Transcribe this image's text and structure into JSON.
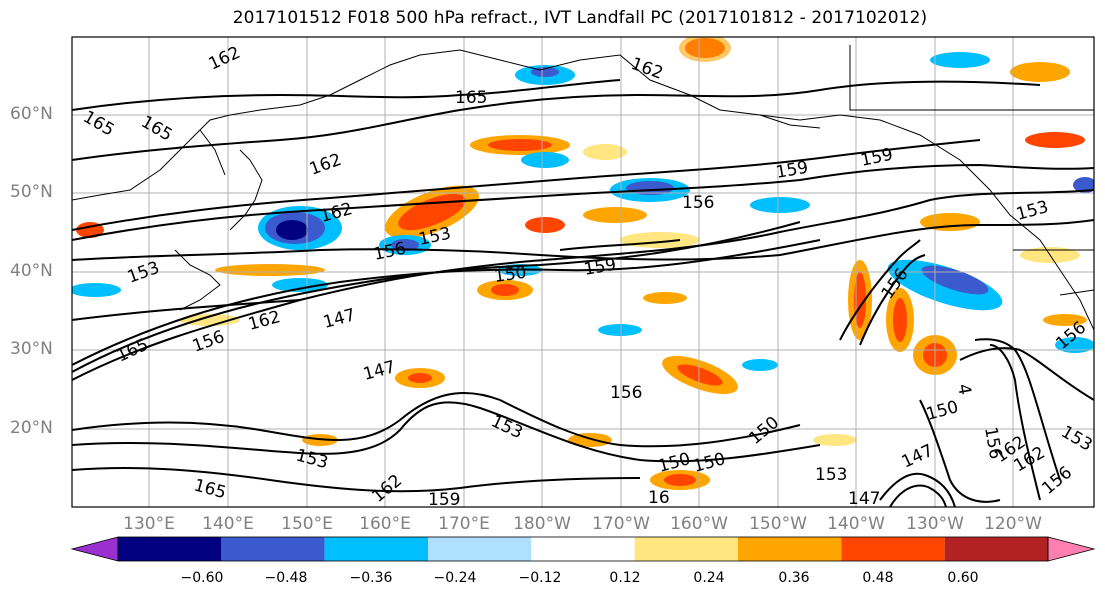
{
  "title": "2017101512 F018 500 hPa refract., IVT Landfall PC (2017101812 - 2017102012)",
  "lat_labels": [
    "60°N",
    "50°N",
    "40°N",
    "30°N",
    "20°N"
  ],
  "lon_labels": [
    "130°E",
    "140°E",
    "150°E",
    "160°E",
    "170°E",
    "180°W",
    "170°W",
    "160°W",
    "150°W",
    "140°W",
    "130°W",
    "120°W"
  ],
  "colorbar": {
    "ticks": [
      "−0.60",
      "−0.48",
      "−0.36",
      "−0.24",
      "−0.12",
      "0.12",
      "0.24",
      "0.36",
      "0.48",
      "0.60"
    ],
    "colors": [
      "#9b30d0",
      "#000080",
      "#3a5acd",
      "#00bfff",
      "#b0e0ff",
      "#ffffff",
      "#ffe680",
      "#ffa500",
      "#ff4500",
      "#b22222",
      "#ff80b0"
    ]
  },
  "contour_labels": [
    "162",
    "165",
    "165",
    "162",
    "162",
    "162",
    "159",
    "159",
    "156",
    "153",
    "156",
    "153",
    "150",
    "159",
    "153",
    "147",
    "162",
    "156",
    "147",
    "165",
    "156",
    "153",
    "150",
    "153",
    "147",
    "150",
    "156",
    "153",
    "162",
    "156",
    "165",
    "162",
    "159",
    "16",
    "153",
    "150",
    "147",
    "156",
    "165",
    "162",
    "150",
    "4",
    "156"
  ]
}
